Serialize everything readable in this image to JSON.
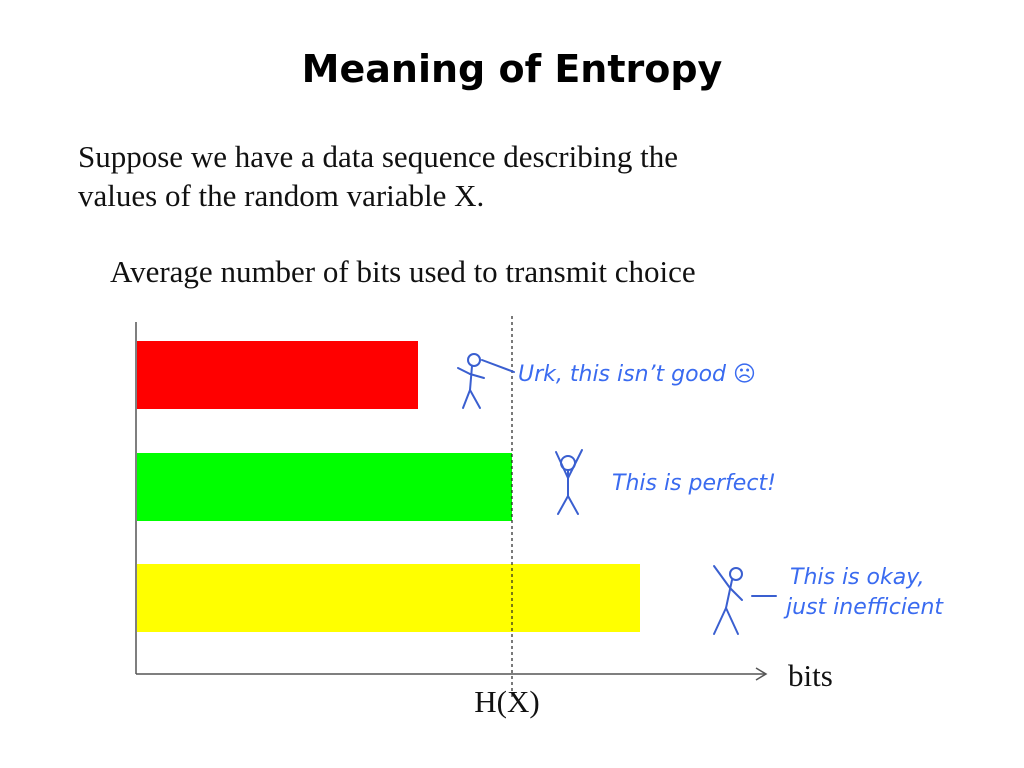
{
  "header": {
    "title": "Meaning of Entropy"
  },
  "intro": [
    "Suppose we have a data sequence describing the",
    "values of the random variable X."
  ],
  "subtitle": "Average number of bits used to transmit choice",
  "annotations": [
    {
      "lines": [
        "Urk, this isn’t good ☹"
      ]
    },
    {
      "lines": [
        "This is perfect!"
      ]
    },
    {
      "lines": [
        "This is okay,",
        "just inefficient"
      ]
    }
  ],
  "axis": {
    "x_label": "bits",
    "marker_label": "H(X)"
  }
}
